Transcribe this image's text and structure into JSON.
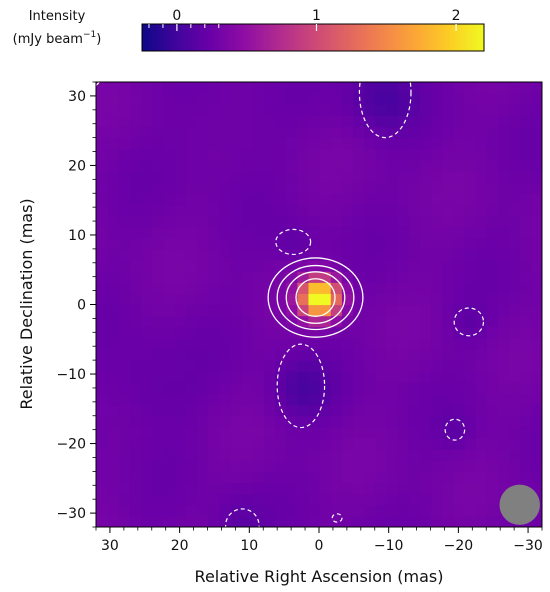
{
  "chart_data": {
    "type": "heatmap",
    "title": "",
    "xlabel": "Relative Right Ascension (mas)",
    "ylabel": "Relative Declination (mas)",
    "xlim": [
      32,
      -32
    ],
    "ylim": [
      -32,
      32
    ],
    "x_ticks": [
      30,
      20,
      10,
      0,
      -10,
      -20,
      -30
    ],
    "x_tick_labels": [
      "30",
      "20",
      "10",
      "0",
      "−10",
      "−20",
      "−30"
    ],
    "y_ticks": [
      30,
      20,
      10,
      0,
      -10,
      -20,
      -30
    ],
    "y_tick_labels": [
      "30",
      "20",
      "10",
      "0",
      "−10",
      "−20",
      "−30"
    ],
    "colormap": "plasma",
    "colorbar": {
      "label_line1": "Intensity",
      "label_line2": "(mJy beam",
      "label_sup": "−1",
      "label_close": ")",
      "range": [
        -0.25,
        2.2
      ],
      "ticks": [
        0,
        1,
        2
      ],
      "tick_labels": [
        "0",
        "1",
        "2"
      ],
      "minor_ticks": [
        -0.2,
        -0.1,
        0.1,
        0.2,
        0.3
      ]
    },
    "background_intensity": 0.28,
    "sources": [
      {
        "x": 0,
        "y": 1,
        "peak": 2.2,
        "sigma": 1.9,
        "role": "core"
      },
      {
        "x": -9,
        "y": 30,
        "peak": -0.22,
        "sigma": 3.5
      },
      {
        "x": 2.5,
        "y": -12,
        "peak": -0.2,
        "sigma": 3.0
      },
      {
        "x": 3.5,
        "y": 9,
        "peak": -0.1,
        "sigma": 2.0
      },
      {
        "x": -21.5,
        "y": -2.5,
        "peak": -0.1,
        "sigma": 2.0
      },
      {
        "x": -19.5,
        "y": -18,
        "peak": -0.1,
        "sigma": 1.6
      },
      {
        "x": 11.5,
        "y": -31,
        "peak": -0.12,
        "sigma": 2.5
      },
      {
        "x": 25,
        "y": -12,
        "peak": -0.1,
        "sigma": 5.0
      },
      {
        "x": 14,
        "y": 25,
        "peak": -0.06,
        "sigma": 5.0
      }
    ],
    "contours_positive": [
      {
        "x": 0.5,
        "y": 1.0,
        "rx": 6.8,
        "ry": 5.7
      },
      {
        "x": 0.5,
        "y": 1.0,
        "rx": 5.5,
        "ry": 4.6
      },
      {
        "x": 0.5,
        "y": 1.0,
        "rx": 4.2,
        "ry": 3.7
      },
      {
        "x": 0.5,
        "y": 1.0,
        "rx": 2.8,
        "ry": 2.7
      }
    ],
    "contours_negative": [
      {
        "x": -9.5,
        "y": 30.5,
        "rx": 3.7,
        "ry": 6.5
      },
      {
        "x": 2.6,
        "y": -11.7,
        "rx": 3.4,
        "ry": 6.0
      },
      {
        "x": 3.7,
        "y": 9.0,
        "rx": 2.5,
        "ry": 1.8
      },
      {
        "x": -21.5,
        "y": -2.5,
        "rx": 2.1,
        "ry": 2.0
      },
      {
        "x": -19.5,
        "y": -18.0,
        "rx": 1.4,
        "ry": 1.5
      },
      {
        "x": 11.0,
        "y": -31.8,
        "rx": 2.4,
        "ry": 2.4
      },
      {
        "x": -2.6,
        "y": -30.7,
        "rx": 0.7,
        "ry": 0.6
      }
    ],
    "contour_partial": {
      "x": 36,
      "y": 36,
      "r": 6
    },
    "beam": {
      "x": -28.8,
      "y": -28.8,
      "rx": 2.9,
      "ry": 2.9,
      "color": "#808080"
    },
    "contour_color": "#ffffff"
  }
}
